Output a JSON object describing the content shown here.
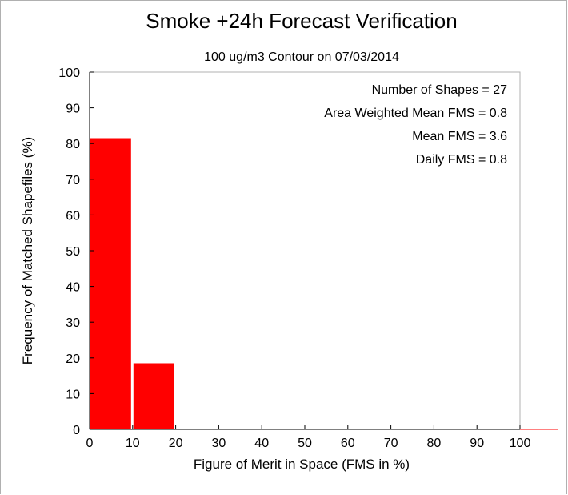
{
  "chart_data": {
    "type": "bar",
    "title": "Smoke +24h Forecast Verification",
    "subtitle": "100 ug/m3 Contour on 07/03/2014",
    "xlabel": "Figure of Merit in Space (FMS in %)",
    "ylabel": "Frequency of Matched Shapefiles (%)",
    "xlim": [
      0,
      100
    ],
    "ylim": [
      0,
      100
    ],
    "x_ticks": [
      "0",
      "10",
      "20",
      "30",
      "40",
      "50",
      "60",
      "70",
      "80",
      "90",
      "100"
    ],
    "y_ticks": [
      "0",
      "10",
      "20",
      "30",
      "40",
      "50",
      "60",
      "70",
      "80",
      "90",
      "100"
    ],
    "bins": [
      {
        "from": 0,
        "to": 10,
        "value": 81.5
      },
      {
        "from": 10,
        "to": 20,
        "value": 18.5
      },
      {
        "from": 20,
        "to": 30,
        "value": 0
      },
      {
        "from": 30,
        "to": 40,
        "value": 0
      },
      {
        "from": 40,
        "to": 50,
        "value": 0
      },
      {
        "from": 50,
        "to": 60,
        "value": 0
      },
      {
        "from": 60,
        "to": 70,
        "value": 0
      },
      {
        "from": 70,
        "to": 80,
        "value": 0
      },
      {
        "from": 80,
        "to": 90,
        "value": 0
      },
      {
        "from": 90,
        "to": 100,
        "value": 0
      }
    ],
    "bar_color": "#ff0000",
    "grid": false,
    "annotations": [
      "Number of Shapes = 27",
      "Area Weighted Mean FMS = 0.8",
      "Mean FMS = 3.6",
      "Daily FMS = 0.8"
    ]
  }
}
